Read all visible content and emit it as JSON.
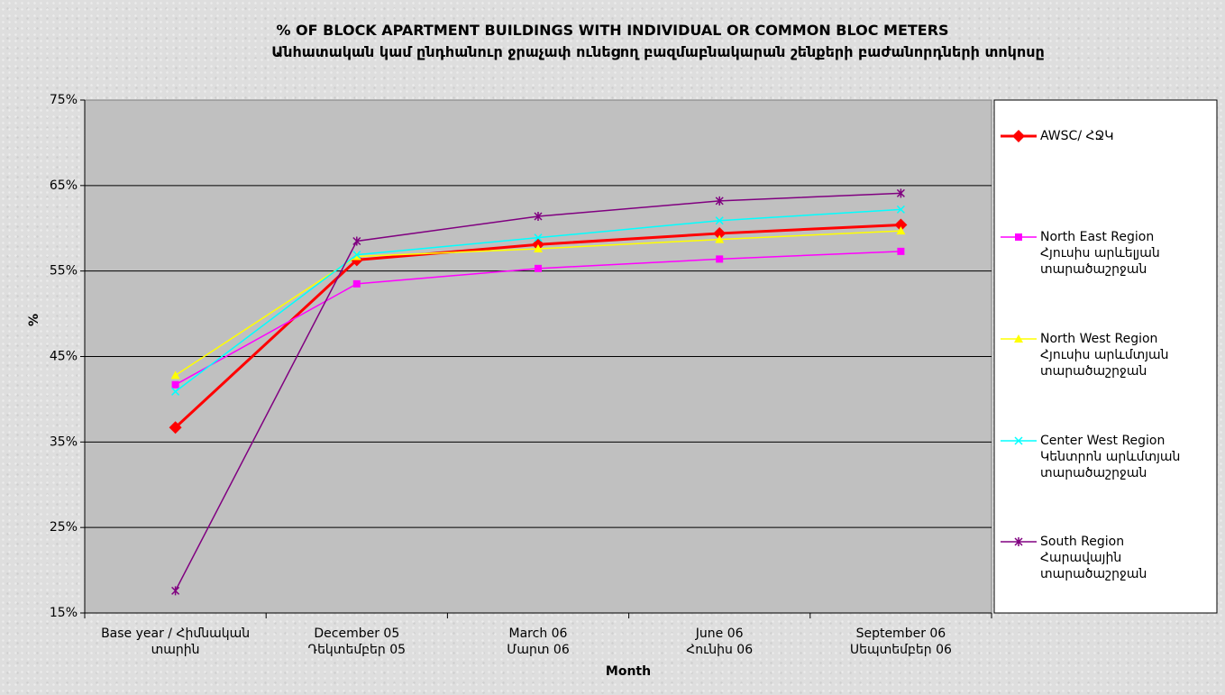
{
  "chart_data": {
    "type": "line",
    "title": "% OF BLOCK APARTMENT BUILDINGS WITH INDIVIDUAL OR COMMON BLOC METERS",
    "subtitle": "Անհատական կամ ընդհանուր ջրաչափ ունեցող բազմաբնակարան շենքերի բաժանորդների տոկոսը",
    "x_label": "Month",
    "y_label": "%",
    "categories": [
      "Base year / Հիմնական\nտարին",
      "December 05\nԴեկտեմբեր 05",
      "March 06\nՄարտ 06",
      "June 06\nՀունիս 06",
      "September 06\nՍեպտեմբեր 06"
    ],
    "ylim": [
      15,
      75
    ],
    "yticks": [
      {
        "value": 15,
        "label": "15%"
      },
      {
        "value": 25,
        "label": "25%"
      },
      {
        "value": 35,
        "label": "35%"
      },
      {
        "value": 45,
        "label": "45%"
      },
      {
        "value": 55,
        "label": "55%"
      },
      {
        "value": 65,
        "label": "65%"
      },
      {
        "value": 75,
        "label": "75%"
      }
    ],
    "grid": true,
    "legend": "right",
    "series": [
      {
        "name": "AWSC/ ՀՋԿ",
        "color": "#ff0000",
        "marker": "diamond",
        "values": [
          36.7,
          56.3,
          58.1,
          59.4,
          60.4
        ]
      },
      {
        "name": "North East Region\nՀյուսիս արևելյան\nտարածաշրջան",
        "color": "#ff00ff",
        "marker": "square",
        "values": [
          41.7,
          53.5,
          55.3,
          56.4,
          57.3
        ]
      },
      {
        "name": "North West Region\nՀյուսիս արևմտյան\nտարածաշրջան",
        "color": "#ffff00",
        "marker": "triangle",
        "values": [
          42.8,
          56.7,
          57.6,
          58.7,
          59.7
        ]
      },
      {
        "name": "Center West Region\nԿենտրոն արևմտյան\nտարածաշրջան",
        "color": "#00ffff",
        "marker": "x",
        "values": [
          40.9,
          56.9,
          58.9,
          60.9,
          62.2
        ]
      },
      {
        "name": "South Region\nՀարավային\nտարածաշրջան",
        "color": "#800080",
        "marker": "star",
        "values": [
          17.6,
          58.5,
          61.4,
          63.2,
          64.1
        ]
      }
    ]
  }
}
